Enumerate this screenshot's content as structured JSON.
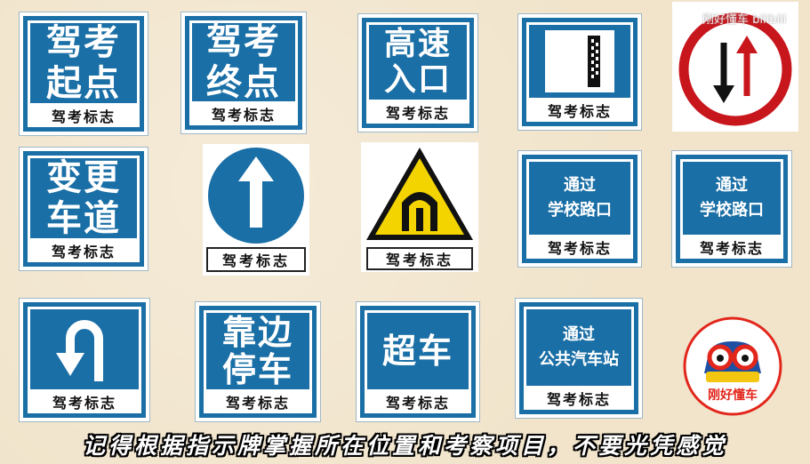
{
  "signs": {
    "s1": {
      "text": "驾考\n起点",
      "label": "驾考标志"
    },
    "s2": {
      "text": "驾考\n终点",
      "label": "驾考标志"
    },
    "s3": {
      "text": "高速\n入口",
      "label": "驾考标志"
    },
    "s4": {
      "label": "驾考标志"
    },
    "s6": {
      "text": "变更\n车道",
      "label": "驾考标志"
    },
    "s7": {
      "label": "驾考标志"
    },
    "s8": {
      "label": "驾考标志"
    },
    "s9": {
      "text": "通过\n学校路口",
      "label": "驾考标志"
    },
    "s10": {
      "text": "通过\n学校路口",
      "label": "驾考标志"
    },
    "s11": {
      "label": "驾考标志"
    },
    "s12": {
      "text": "靠边\n停车",
      "label": "驾考标志"
    },
    "s13": {
      "text": "超车",
      "label": "驾考标志"
    },
    "s14": {
      "text": "通过\n公共汽车站",
      "label": "驾考标志"
    }
  },
  "watermark": "刚好懂车 bilibili",
  "logo": {
    "text": "刚好懂车"
  },
  "subtitle": "记得根据指示牌掌握所在位置和考察项目，不要光凭感觉",
  "colors": {
    "sign_blue": "#1a6fa6",
    "warning_yellow": "#f3d400",
    "prohibit_red": "#c8161d"
  }
}
